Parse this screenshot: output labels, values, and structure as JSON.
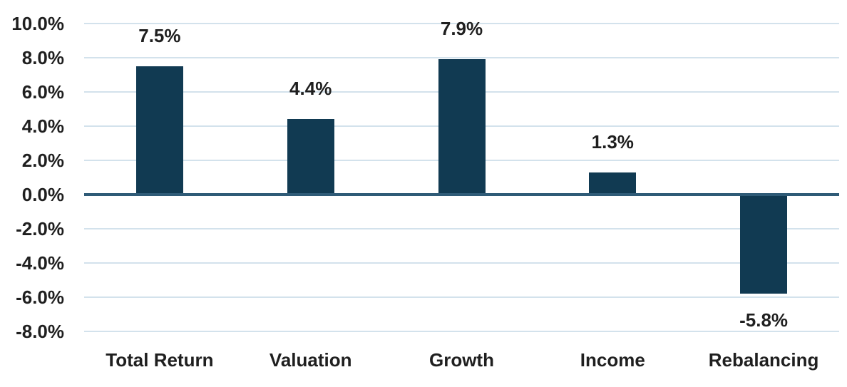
{
  "chart_data": {
    "type": "bar",
    "categories": [
      "Total Return",
      "Valuation",
      "Growth",
      "Income",
      "Rebalancing"
    ],
    "values": [
      7.5,
      4.4,
      7.9,
      1.3,
      -5.8
    ],
    "value_labels": [
      "7.5%",
      "4.4%",
      "7.9%",
      "1.3%",
      "-5.8%"
    ],
    "title": "",
    "xlabel": "",
    "ylabel": "",
    "ylim": [
      -8,
      10
    ],
    "ytick_step": 2,
    "ytick_labels": [
      "10.0%",
      "8.0%",
      "6.0%",
      "4.0%",
      "2.0%",
      "0.0%",
      "-2.0%",
      "-4.0%",
      "-6.0%",
      "-8.0%"
    ],
    "grid": true,
    "legend": false,
    "colors": {
      "bar": "#113a52",
      "gridline": "#d3e2ec",
      "zero_line": "#2f5b77",
      "text": "#1f1f1f",
      "background": "#ffffff"
    }
  }
}
